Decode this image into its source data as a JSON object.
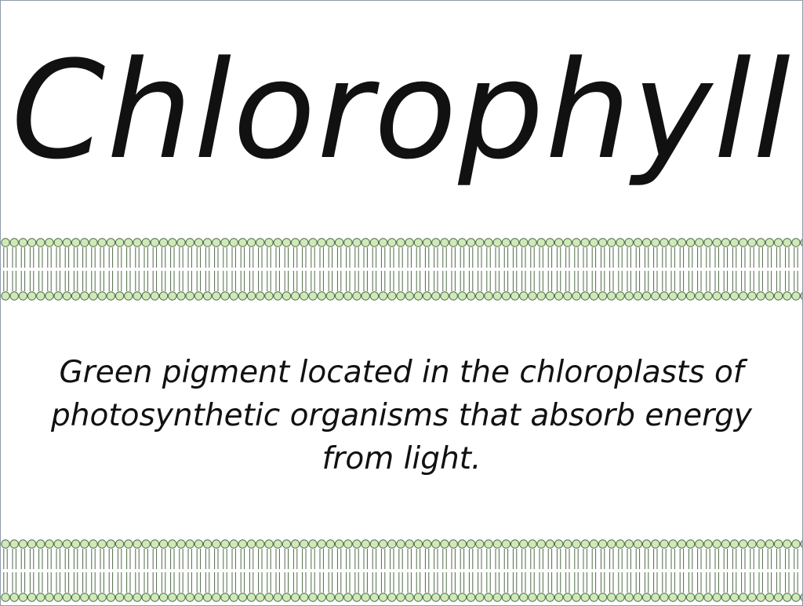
{
  "slide": {
    "title": "Chlorophyll",
    "definition": "Green pigment located in the chloroplasts of photosynthetic organisms that absorb energy from light."
  },
  "colors": {
    "phospholipid_head_fill": "#cfeab8",
    "phospholipid_outline": "#4f6b47",
    "text": "#111111",
    "background": "#ffffff"
  }
}
